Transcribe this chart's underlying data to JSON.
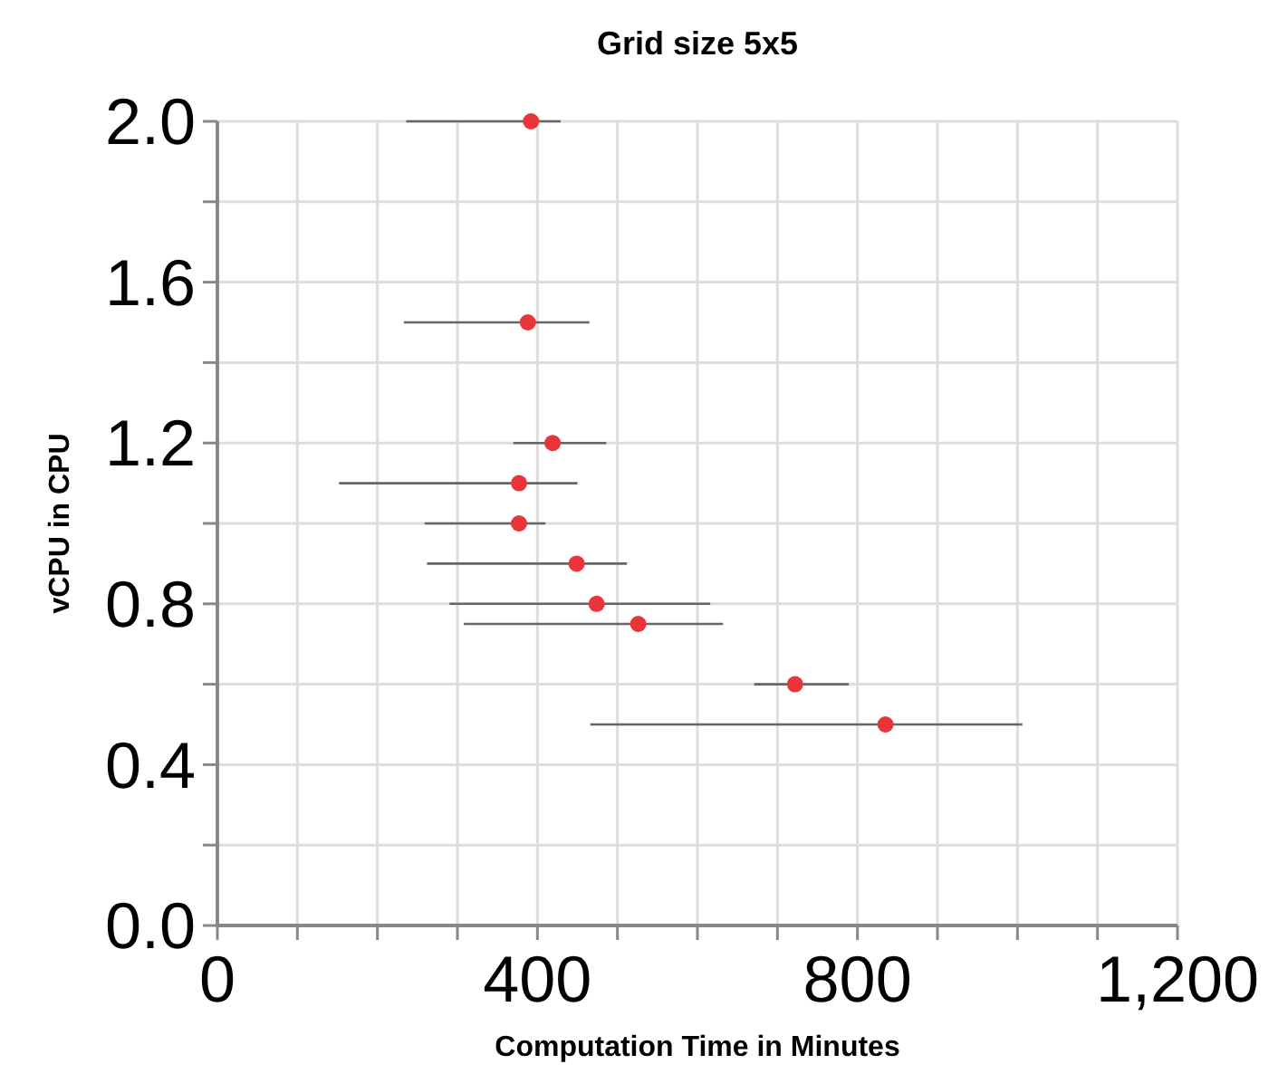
{
  "chart_data": {
    "type": "scatter",
    "title": "Grid size 5x5",
    "xlabel": "Computation Time in Minutes",
    "ylabel": "vCPU in CPU",
    "x": [
      392,
      388,
      419,
      377,
      377,
      449,
      474,
      526,
      722,
      835
    ],
    "values": [
      2.0,
      1.5,
      1.2,
      1.1,
      1.0,
      0.9,
      0.8,
      0.75,
      0.6,
      0.5
    ],
    "xerrors": [
      [
        236,
        429
      ],
      [
        233,
        465
      ],
      [
        370,
        486
      ],
      [
        152,
        450
      ],
      [
        259,
        410
      ],
      [
        262,
        512
      ],
      [
        290,
        616
      ],
      [
        308,
        632
      ],
      [
        671,
        789
      ],
      [
        466,
        1006
      ]
    ],
    "color": "#e8353b",
    "marker": "circle",
    "grid": true,
    "xlim": [
      0,
      1200
    ],
    "xticks": [
      0,
      {
        "value": 100,
        "label": null
      },
      {
        "value": 200,
        "label": null
      },
      {
        "value": 300,
        "label": null
      },
      400,
      {
        "value": 500,
        "label": null
      },
      {
        "value": 600,
        "label": null
      },
      {
        "value": 700,
        "label": null
      },
      800,
      {
        "value": 900,
        "label": null
      },
      {
        "value": 1000,
        "label": null
      },
      {
        "value": 1100,
        "label": null
      },
      {
        "value": 1200,
        "label": "1,200"
      }
    ],
    "ylim": [
      0,
      2
    ],
    "yticks": [
      {
        "value": 0,
        "label": "0.0"
      },
      {
        "value": 0.2,
        "label": null
      },
      0.4,
      {
        "value": 0.6,
        "label": null
      },
      0.8,
      {
        "value": 1,
        "label": null
      },
      1.2,
      {
        "value": 1.4,
        "label": null
      },
      1.6,
      {
        "value": 1.8,
        "label": null
      },
      {
        "value": 2,
        "label": "2.0"
      }
    ]
  }
}
